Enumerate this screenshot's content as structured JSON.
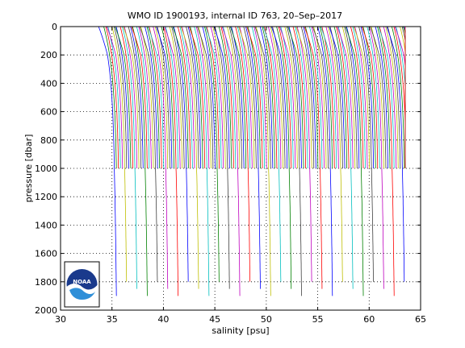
{
  "chart_data": {
    "type": "line",
    "title": "WMO ID 1900193, internal ID 763, 20–Sep–2017",
    "xlabel": "salinity [psu]",
    "ylabel": "pressure [dbar]",
    "xlim": [
      30,
      65
    ],
    "ylim": [
      0,
      2000
    ],
    "y_reversed": true,
    "xticks": [
      "30",
      "35",
      "40",
      "45",
      "50",
      "55",
      "60",
      "65"
    ],
    "yticks": [
      "0",
      "200",
      "400",
      "600",
      "800",
      "1000",
      "1200",
      "1400",
      "1600",
      "1800",
      "2000"
    ],
    "grid": true,
    "grid_style": "dotted",
    "description_of_series": "Waterfall of ~150 successive salinity profiles, each offset by ~0.2 psu; profiles to 1000 dbar plus ~30 deep profiles to ~1850-2000 dbar",
    "profile_count": 150,
    "profile_start_salinity": 34.0,
    "profile_step_psu": 0.2,
    "shallow_max_pressure": 1000,
    "deep_profiles": [
      0,
      5,
      10,
      15,
      20,
      25,
      30,
      35,
      40,
      45,
      50,
      55,
      60,
      65,
      70,
      75,
      80,
      85,
      90,
      95,
      100,
      105,
      110,
      115,
      120,
      125,
      130,
      135,
      140
    ],
    "deep_max_pressure": 1900,
    "series_colors": [
      "#0000ff",
      "#008000",
      "#ff0000",
      "#00bfbf",
      "#bf00bf",
      "#bfbf00",
      "#404040"
    ],
    "logo": "noaa-logo"
  }
}
